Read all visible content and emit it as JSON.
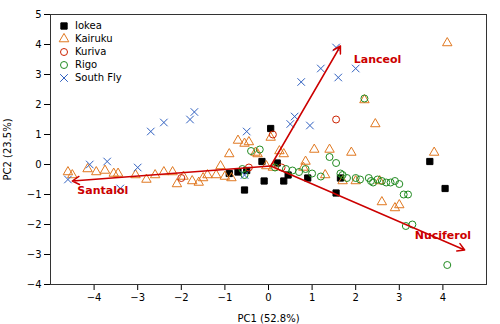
{
  "chart_data": {
    "type": "scatter",
    "xlabel": "PC1 (52.8%)",
    "ylabel": "PC2 (23.5%)",
    "xlim": [
      -5,
      5
    ],
    "ylim": [
      -4,
      5
    ],
    "xticks": [
      -4,
      -3,
      -2,
      -1,
      0,
      1,
      2,
      3,
      4
    ],
    "yticks": [
      -4,
      -3,
      -2,
      -1,
      0,
      1,
      2,
      3,
      4,
      5
    ],
    "grid": false,
    "legend": "upper left",
    "series": [
      {
        "name": "Iokea",
        "color": "#000000",
        "marker": "square",
        "x": [
          -0.9,
          -0.7,
          -0.5,
          -0.15,
          0.05,
          0.2,
          -0.1,
          -0.55,
          0.45,
          0.35,
          0.9,
          1.65,
          1.55,
          4.05,
          3.7
        ],
        "y": [
          -0.3,
          -0.25,
          -0.2,
          0.1,
          1.2,
          0.05,
          -0.55,
          -0.85,
          -0.35,
          -0.55,
          -0.45,
          -0.45,
          -0.95,
          -0.8,
          0.1
        ]
      },
      {
        "name": "Kairuku",
        "color": "#E07820",
        "marker": "triangle-open",
        "x": [
          -4.6,
          -4.5,
          -4.15,
          -3.95,
          -3.75,
          -3.55,
          -3.45,
          -3.05,
          -2.8,
          -2.6,
          -2.4,
          -2.2,
          -2.1,
          -1.95,
          -1.75,
          -1.6,
          -1.5,
          -1.4,
          -1.2,
          -1.1,
          -1.0,
          -0.9,
          -0.85,
          -0.7,
          -0.55,
          -0.45,
          -0.3,
          -0.25,
          0.05,
          -0.05,
          0.1,
          0.25,
          0.35,
          0.8,
          0.85,
          1.05,
          1.3,
          1.4,
          1.7,
          1.9,
          2.0,
          2.2,
          2.45,
          2.55,
          2.6,
          2.9,
          3.0,
          3.8,
          4.1
        ],
        "y": [
          -0.25,
          -0.35,
          -0.15,
          -0.25,
          -0.2,
          -0.3,
          -0.3,
          -0.35,
          -0.5,
          -0.35,
          -0.25,
          -0.25,
          -0.65,
          -0.4,
          -0.55,
          -0.6,
          -0.45,
          -0.35,
          -0.35,
          -0.05,
          -0.4,
          0.35,
          -0.45,
          0.8,
          0.7,
          0.75,
          0.4,
          0.35,
          0.9,
          -0.05,
          -0.1,
          0.45,
          0.35,
          -0.1,
          0.1,
          0.5,
          -0.35,
          0.5,
          -0.55,
          0.4,
          -0.55,
          2.15,
          1.35,
          -0.55,
          -1.25,
          -1.45,
          -1.35,
          0.4,
          4.05
        ]
      },
      {
        "name": "Kuriva",
        "color": "#CC2200",
        "marker": "circle-open",
        "x": [
          -2.0,
          -0.45,
          0.1,
          0.3,
          1.55
        ],
        "y": [
          -0.45,
          -0.1,
          1.0,
          -0.1,
          1.5
        ]
      },
      {
        "name": "Rigo",
        "color": "#228B22",
        "marker": "circle-open",
        "x": [
          -0.6,
          -0.55,
          -0.4,
          -0.2,
          0.15,
          0.4,
          0.55,
          0.7,
          0.85,
          1.0,
          1.2,
          1.4,
          1.55,
          1.65,
          1.7,
          1.8,
          2.0,
          2.1,
          2.2,
          2.3,
          2.35,
          2.4,
          2.5,
          2.6,
          2.7,
          2.8,
          2.9,
          3.0,
          3.1,
          3.15,
          3.2,
          3.3,
          4.1
        ],
        "y": [
          -0.15,
          -0.35,
          0.45,
          0.5,
          -0.1,
          -0.15,
          -0.2,
          -0.25,
          -0.15,
          -0.3,
          -0.4,
          0.25,
          0.05,
          -0.3,
          -0.35,
          -0.45,
          -0.45,
          -0.5,
          2.2,
          -0.45,
          -0.55,
          -0.6,
          -0.5,
          -0.55,
          -0.6,
          -0.6,
          -0.55,
          -0.65,
          -1.0,
          -2.05,
          -1.0,
          -2.0,
          -3.35
        ]
      },
      {
        "name": "South Fly",
        "color": "#3060C0",
        "marker": "x",
        "x": [
          -4.6,
          -4.1,
          -3.7,
          -3.4,
          -3.0,
          -2.7,
          -2.4,
          -1.8,
          -1.7,
          -0.55,
          -0.5,
          0.5,
          0.6,
          0.75,
          0.95,
          1.2,
          1.55,
          1.6,
          2.0
        ],
        "y": [
          -0.5,
          0.0,
          0.1,
          -0.8,
          -0.1,
          1.1,
          1.4,
          1.5,
          1.75,
          -0.35,
          1.1,
          1.35,
          1.6,
          2.75,
          1.3,
          3.2,
          3.9,
          2.9,
          3.2
        ]
      }
    ],
    "annotations": [
      {
        "x0": 0.05,
        "y0": -0.05,
        "x1": 1.65,
        "y1": 3.95,
        "label": "Lanceol",
        "lx": 2.5,
        "ly": 3.5,
        "color": "#CC0000"
      },
      {
        "x0": 0.05,
        "y0": -0.05,
        "x1": -4.5,
        "y1": -0.55,
        "label": "Santalol",
        "lx": -3.8,
        "ly": -0.85,
        "color": "#CC0000"
      },
      {
        "x0": 0.05,
        "y0": -0.05,
        "x1": 4.5,
        "y1": -2.85,
        "label": "Nuciferol",
        "lx": 4.0,
        "ly": -2.35,
        "color": "#CC0000"
      }
    ]
  }
}
